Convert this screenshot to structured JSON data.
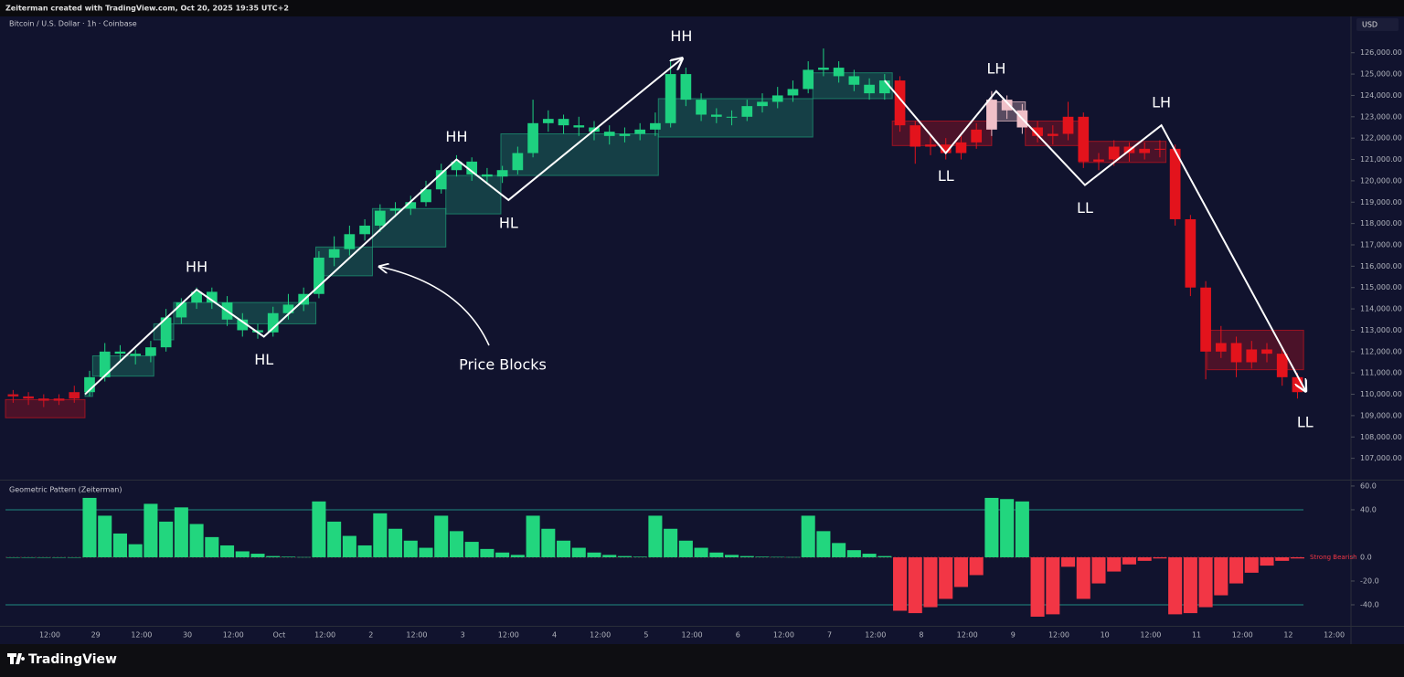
{
  "header": {
    "credit": "Zeiterman created with TradingView.com, Oct 20, 2025 19:35 UTC+2",
    "symbol": "Bitcoin / U.S. Dollar · 1h · Coinbase",
    "currency": "USD"
  },
  "footer": {
    "brand": "TradingView"
  },
  "chart_data": [
    {
      "type": "candlestick",
      "annotation": "Price Blocks",
      "categories": [
        null,
        null,
        null,
        null,
        null,
        null,
        null,
        null,
        null,
        null,
        null,
        null,
        null,
        null,
        null,
        null,
        null,
        null,
        null,
        null,
        null,
        null,
        null,
        null,
        null,
        null,
        null,
        null,
        null,
        null,
        null,
        null,
        null,
        null,
        null,
        null,
        null,
        null,
        null,
        null,
        null,
        null,
        null,
        null,
        null,
        null,
        null,
        null,
        null,
        null,
        null,
        null,
        null,
        null,
        null,
        null,
        null,
        null,
        null,
        null,
        null,
        null,
        null,
        null,
        null,
        null,
        null,
        null,
        null,
        null,
        null,
        null,
        null,
        null,
        null,
        null,
        null,
        null,
        null,
        null,
        null,
        null,
        null,
        null,
        null
      ],
      "open": [
        110000,
        109900,
        109800,
        109700,
        109800,
        110100,
        110800,
        112000,
        111900,
        111800,
        112200,
        113600,
        114300,
        114800,
        114300,
        113500,
        113000,
        112900,
        113800,
        114200,
        114700,
        116400,
        116800,
        117500,
        117900,
        118600,
        118700,
        119000,
        119600,
        120500,
        120900,
        120300,
        120200,
        120500,
        121300,
        122700,
        122900,
        122600,
        122500,
        122300,
        122100,
        122200,
        122400,
        122700,
        125000,
        123800,
        123100,
        123000,
        123000,
        123500,
        123700,
        124000,
        124300,
        125200,
        125300,
        124900,
        124500,
        124100,
        124700,
        122600,
        121600,
        121700,
        121300,
        121800,
        122400,
        123800,
        123300,
        122500,
        122100,
        122200,
        123000,
        120900,
        121000,
        121600,
        121300,
        121500,
        121500,
        118200,
        115000,
        112000,
        112400,
        111500,
        112100,
        111900,
        110800
      ],
      "high": [
        110200,
        110100,
        110000,
        110000,
        110400,
        111100,
        112400,
        112300,
        112100,
        112500,
        114000,
        114500,
        115000,
        115000,
        114600,
        113800,
        113300,
        114100,
        114700,
        115000,
        116700,
        117400,
        117900,
        118200,
        118900,
        119000,
        119300,
        120000,
        120800,
        121200,
        121100,
        120600,
        120700,
        121600,
        123800,
        123300,
        123100,
        123000,
        122800,
        122600,
        122500,
        122700,
        123200,
        125600,
        125300,
        124100,
        123400,
        123300,
        123800,
        124100,
        124400,
        124700,
        125600,
        126200,
        125600,
        125200,
        124800,
        125000,
        124900,
        122800,
        122100,
        122000,
        122100,
        122700,
        124200,
        124000,
        123600,
        122800,
        122600,
        123700,
        123200,
        121300,
        121900,
        121800,
        121800,
        121900,
        121700,
        118400,
        115300,
        113200,
        112700,
        112500,
        112400,
        112200,
        111000
      ],
      "low": [
        109600,
        109500,
        109400,
        109500,
        109600,
        109900,
        110600,
        111500,
        111400,
        111500,
        112000,
        113300,
        114000,
        114000,
        113200,
        112700,
        112600,
        112700,
        113500,
        113900,
        114500,
        116000,
        116500,
        117200,
        117600,
        118300,
        118400,
        118800,
        119400,
        120200,
        120000,
        119900,
        119900,
        120300,
        121100,
        122300,
        122200,
        122100,
        121900,
        121700,
        121800,
        121900,
        122100,
        122500,
        123500,
        122800,
        122700,
        122600,
        122800,
        123200,
        123400,
        123700,
        124100,
        124900,
        124600,
        124200,
        123800,
        123800,
        122300,
        120800,
        121200,
        121000,
        121000,
        121500,
        122100,
        122900,
        122200,
        121800,
        121700,
        121900,
        120600,
        120500,
        120700,
        120900,
        121000,
        121100,
        117900,
        114600,
        110700,
        111700,
        110800,
        111200,
        111500,
        110400,
        109800
      ],
      "close": [
        109900,
        109800,
        109700,
        109800,
        110100,
        110800,
        112000,
        111900,
        111800,
        112200,
        113600,
        114300,
        114800,
        114300,
        113500,
        113000,
        112900,
        113800,
        114200,
        114700,
        116400,
        116800,
        117500,
        117900,
        118600,
        118700,
        119000,
        119600,
        120500,
        120900,
        120300,
        120200,
        120500,
        121300,
        122700,
        122900,
        122600,
        122500,
        122300,
        122100,
        122200,
        122400,
        122700,
        125000,
        123800,
        123100,
        123000,
        123000,
        123500,
        123700,
        124000,
        124300,
        125200,
        125300,
        124900,
        124500,
        124100,
        124700,
        122600,
        121600,
        121700,
        121300,
        121800,
        122400,
        123800,
        123300,
        122500,
        122100,
        122200,
        123000,
        120900,
        121000,
        121600,
        121300,
        121500,
        121500,
        118200,
        115000,
        112000,
        112400,
        111500,
        112100,
        111900,
        110800,
        110100
      ],
      "color_ranges": [
        {
          "from": 0,
          "to": 4,
          "color": "#d41320"
        },
        {
          "from": 5,
          "to": 57,
          "color": "#1ed180"
        },
        {
          "from": 58,
          "to": 63,
          "color": "#e3131c"
        },
        {
          "from": 64,
          "to": 66,
          "color": "#f0c0c8"
        },
        {
          "from": 67,
          "to": 84,
          "color": "#e3131c"
        }
      ],
      "blocks": [
        {
          "start": -0.5,
          "end": 4.7,
          "low": 108900,
          "high": 109750,
          "color": "#c8141f"
        },
        {
          "start": 4.7,
          "end": 5.2,
          "low": 109900,
          "high": 110300,
          "color": "#1e9e78"
        },
        {
          "start": 5.2,
          "end": 9.2,
          "low": 110850,
          "high": 111800,
          "color": "#1e9e78"
        },
        {
          "start": 9.2,
          "end": 10.5,
          "low": 112550,
          "high": 113300,
          "color": "#1e9e78"
        },
        {
          "start": 10.5,
          "end": 19.8,
          "low": 113300,
          "high": 114300,
          "color": "#1e9e78"
        },
        {
          "start": 19.8,
          "end": 23.5,
          "low": 115550,
          "high": 116900,
          "color": "#1e9e78"
        },
        {
          "start": 23.5,
          "end": 28.3,
          "low": 116900,
          "high": 118700,
          "color": "#1e9e78"
        },
        {
          "start": 28.3,
          "end": 31.9,
          "low": 118450,
          "high": 120250,
          "color": "#1e9e78"
        },
        {
          "start": 31.9,
          "end": 42.2,
          "low": 120250,
          "high": 122200,
          "color": "#1e9e78"
        },
        {
          "start": 42.2,
          "end": 52.3,
          "low": 122050,
          "high": 123850,
          "color": "#1e9e78"
        },
        {
          "start": 52.3,
          "end": 57.5,
          "low": 123850,
          "high": 125060,
          "color": "#1e9e78"
        },
        {
          "start": 57.5,
          "end": 64.0,
          "low": 121650,
          "high": 122800,
          "color": "#c8141f"
        },
        {
          "start": 64.0,
          "end": 66.2,
          "low": 122800,
          "high": 123700,
          "color": "#f2c4cc"
        },
        {
          "start": 66.2,
          "end": 69.7,
          "low": 121650,
          "high": 122800,
          "color": "#c8141f"
        },
        {
          "start": 69.7,
          "end": 75.4,
          "low": 120860,
          "high": 121850,
          "color": "#c8141f"
        },
        {
          "start": 78.1,
          "end": 84.4,
          "low": 111150,
          "high": 113000,
          "color": "#c8141f"
        }
      ],
      "zigzags": [
        [
          {
            "index": 4.7,
            "price": 110000,
            "label": null
          },
          {
            "index": 12.0,
            "price": 114900,
            "label": "HH"
          },
          {
            "index": 16.4,
            "price": 112700,
            "label": "HL"
          },
          {
            "index": 29.0,
            "price": 121000,
            "label": "HH"
          },
          {
            "index": 32.4,
            "price": 119100,
            "label": "HL"
          },
          {
            "index": 43.7,
            "price": 125700,
            "label": "HH"
          }
        ],
        [
          {
            "index": 57.0,
            "price": 124700,
            "label": null
          },
          {
            "index": 61.0,
            "price": 121300,
            "label": "LL"
          },
          {
            "index": 64.3,
            "price": 124200,
            "label": "LH"
          },
          {
            "index": 70.1,
            "price": 119800,
            "label": "LL"
          },
          {
            "index": 75.1,
            "price": 122600,
            "label": "LH"
          },
          {
            "index": 84.5,
            "price": 110200,
            "label": "LL"
          }
        ]
      ],
      "xlim": [
        -0.5,
        87.5
      ],
      "xticks": [
        {
          "value": 2.4,
          "label": "12:00"
        },
        {
          "value": 5.4,
          "label": "29"
        },
        {
          "value": 8.4,
          "label": "12:00"
        },
        {
          "value": 11.4,
          "label": "30"
        },
        {
          "value": 14.4,
          "label": "12:00"
        },
        {
          "value": 17.4,
          "label": "Oct"
        },
        {
          "value": 20.4,
          "label": "12:00"
        },
        {
          "value": 23.4,
          "label": "2"
        },
        {
          "value": 26.4,
          "label": "12:00"
        },
        {
          "value": 29.4,
          "label": "3"
        },
        {
          "value": 32.4,
          "label": "12:00"
        },
        {
          "value": 35.4,
          "label": "4"
        },
        {
          "value": 38.4,
          "label": "12:00"
        },
        {
          "value": 41.4,
          "label": "5"
        },
        {
          "value": 44.4,
          "label": "12:00"
        },
        {
          "value": 47.4,
          "label": "6"
        },
        {
          "value": 50.4,
          "label": "12:00"
        },
        {
          "value": 53.4,
          "label": "7"
        },
        {
          "value": 56.4,
          "label": "12:00"
        },
        {
          "value": 59.4,
          "label": "8"
        },
        {
          "value": 62.4,
          "label": "12:00"
        },
        {
          "value": 65.4,
          "label": "9"
        },
        {
          "value": 68.4,
          "label": "12:00"
        },
        {
          "value": 71.4,
          "label": "10"
        },
        {
          "value": 74.4,
          "label": "12:00"
        },
        {
          "value": 77.4,
          "label": "11"
        },
        {
          "value": 80.4,
          "label": "12:00"
        },
        {
          "value": 83.4,
          "label": "12"
        },
        {
          "value": 86.4,
          "label": "12:00"
        }
      ],
      "ylim": [
        106000,
        127700
      ],
      "yticks": [
        {
          "value": 107000,
          "label": "107,000.00"
        },
        {
          "value": 108000,
          "label": "108,000.00"
        },
        {
          "value": 109000,
          "label": "109,000.00"
        },
        {
          "value": 110000,
          "label": "110,000.00"
        },
        {
          "value": 111000,
          "label": "111,000.00"
        },
        {
          "value": 112000,
          "label": "112,000.00"
        },
        {
          "value": 113000,
          "label": "113,000.00"
        },
        {
          "value": 114000,
          "label": "114,000.00"
        },
        {
          "value": 115000,
          "label": "115,000.00"
        },
        {
          "value": 116000,
          "label": "116,000.00"
        },
        {
          "value": 117000,
          "label": "117,000.00"
        },
        {
          "value": 118000,
          "label": "118,000.00"
        },
        {
          "value": 119000,
          "label": "119,000.00"
        },
        {
          "value": 120000,
          "label": "120,000.00"
        },
        {
          "value": 121000,
          "label": "121,000.00"
        },
        {
          "value": 122000,
          "label": "122,000.00"
        },
        {
          "value": 123000,
          "label": "123,000.00"
        },
        {
          "value": 124000,
          "label": "124,000.00"
        },
        {
          "value": 125000,
          "label": "125,000.00"
        },
        {
          "value": 126000,
          "label": "126,000.00"
        }
      ]
    },
    {
      "type": "bar",
      "title": "Geometric Pattern (Zeiterman)",
      "zero_label": "Strong Bearish",
      "values": [
        0,
        0,
        0,
        0,
        0,
        50,
        35,
        20,
        11,
        45,
        30,
        42,
        28,
        17,
        10,
        5,
        3,
        1,
        0.5,
        0.2,
        47,
        30,
        18,
        10,
        37,
        24,
        14,
        8,
        35,
        22,
        13,
        7,
        4,
        2,
        35,
        24,
        14,
        8,
        4,
        2,
        1,
        0.5,
        35,
        24,
        14,
        8,
        4,
        2,
        1,
        0.5,
        0.3,
        0.2,
        35,
        22,
        12,
        6,
        3,
        1,
        -45,
        -47,
        -42,
        -35,
        -25,
        -15,
        50,
        49,
        47,
        -50,
        -48,
        -8,
        -35,
        -22,
        -12,
        -6,
        -3,
        -1,
        -48,
        -47,
        -42,
        -32,
        -22,
        -13,
        -7,
        -3,
        -1
      ],
      "positive_color": "#22d67e",
      "negative_color": "#f23645",
      "level_color": "#1f8a80",
      "levels": [
        40,
        -40
      ],
      "xlim": [
        -0.5,
        87.5
      ],
      "ylim": [
        -57.7,
        63.8
      ],
      "yticks": [
        {
          "value": 60,
          "label": "60.0"
        },
        {
          "value": 40,
          "label": "40.0"
        },
        {
          "value": 0,
          "label": "0.0"
        },
        {
          "value": -20,
          "label": "-20.0"
        },
        {
          "value": -40,
          "label": "-40.0"
        }
      ]
    }
  ]
}
